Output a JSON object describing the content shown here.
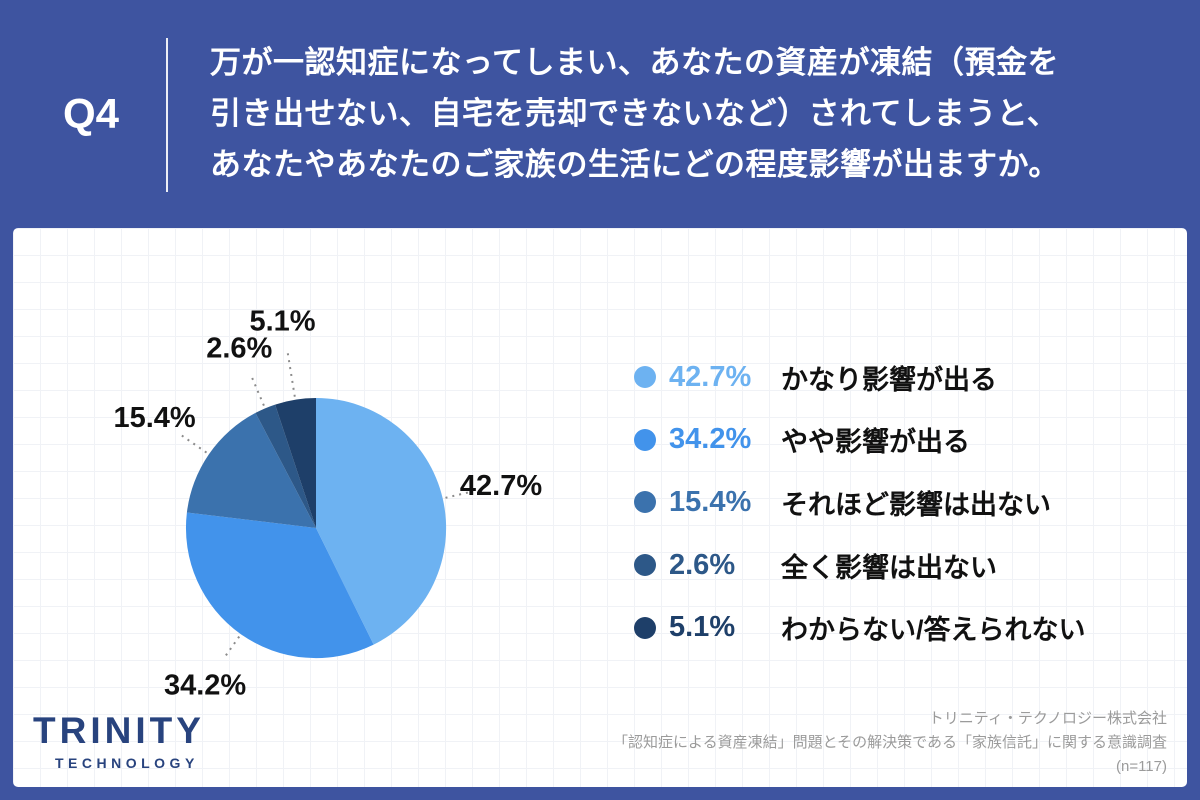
{
  "header": {
    "question_number": "Q4",
    "question_lines": [
      "万が一認知症になってしまい、あなたの資産が凍結（預金を",
      "引き出せない、自宅を売却できないなど）されてしまうと、",
      "あなたやあなたのご家族の生活にどの程度影響が出ますか。"
    ]
  },
  "chart_data": {
    "type": "pie",
    "title": "",
    "unit": "%",
    "start_angle_deg": 0,
    "direction": "clockwise",
    "legend_position": "right",
    "sample_size_note": "(n=117)",
    "segments": [
      {
        "label": "かなり影響が出る",
        "value": 42.7,
        "display": "42.7%",
        "color": "#6db2f1"
      },
      {
        "label": "やや影響が出る",
        "value": 34.2,
        "display": "34.2%",
        "color": "#4293eb"
      },
      {
        "label": "それほど影響は出ない",
        "value": 15.4,
        "display": "15.4%",
        "color": "#3b72ad"
      },
      {
        "label": "全く影響は出ない",
        "value": 2.6,
        "display": "2.6%",
        "color": "#2d5888"
      },
      {
        "label": "わからない/答えられない",
        "value": 5.1,
        "display": "5.1%",
        "color": "#1e3f69"
      }
    ]
  },
  "footer": {
    "logo_primary": "TRINITY",
    "logo_secondary": "TECHNOLOGY",
    "attribution_lines": [
      "トリニティ・テクノロジー株式会社",
      "「認知症による資産凍結」問題とその解決策である「家族信託」に関する意識調査",
      "(n=117)"
    ]
  },
  "colors": {
    "background": "#3e54a0",
    "card": "#ffffff",
    "card_grid": "#f0f2f6",
    "header_text": "#ffffff",
    "label_text": "#111111",
    "leader_line": "#8b8b8b",
    "logo": "#28437e",
    "attribution": "#9b9b9b"
  }
}
